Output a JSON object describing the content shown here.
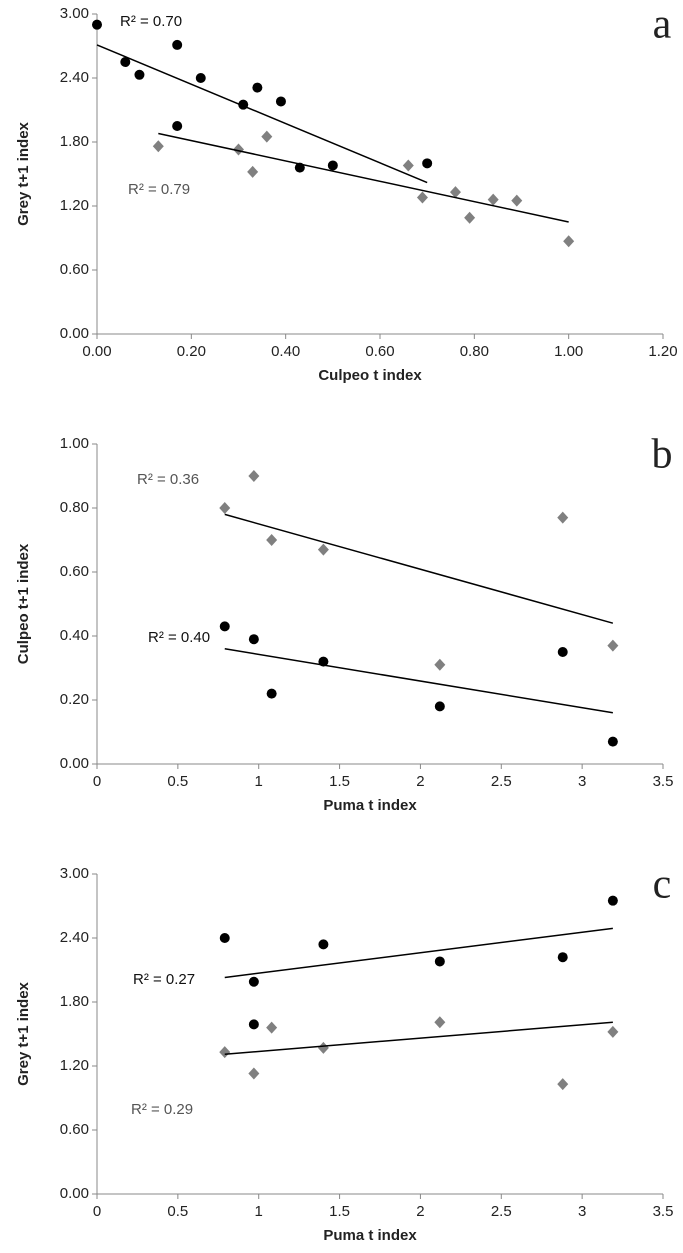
{
  "chart_data": [
    {
      "type": "scatter",
      "panel_label": "a",
      "xlabel": "Culpeo t index",
      "ylabel": "Grey t+1 index",
      "xlim": [
        0,
        1.2
      ],
      "ylim": [
        0,
        3
      ],
      "xticks": [
        {
          "value": 0,
          "label": "0.00"
        },
        {
          "value": 0.2,
          "label": "0.20"
        },
        {
          "value": 0.4,
          "label": "0.40"
        },
        {
          "value": 0.6,
          "label": "0.60"
        },
        {
          "value": 0.8,
          "label": "0.80"
        },
        {
          "value": 1,
          "label": "1.00"
        },
        {
          "value": 1.2,
          "label": "1.20"
        }
      ],
      "yticks": [
        {
          "value": 0,
          "label": "0.00"
        },
        {
          "value": 0.6,
          "label": "0.60"
        },
        {
          "value": 1.2,
          "label": "1.20"
        },
        {
          "value": 1.8,
          "label": "1.80"
        },
        {
          "value": 2.4,
          "label": "2.40"
        },
        {
          "value": 3,
          "label": "3.00"
        }
      ],
      "series": [
        {
          "color": "#000000",
          "marker": "circle",
          "r2_label": "R² = 0.70",
          "x": [
            0,
            0.06,
            0.09,
            0.17,
            0.22,
            0.31,
            0.34,
            0.39,
            0.17,
            0.43,
            0.5,
            0.7
          ],
          "values": [
            2.9,
            2.55,
            2.43,
            2.71,
            2.4,
            2.15,
            2.31,
            2.18,
            1.95,
            1.56,
            1.58,
            1.6
          ],
          "trendline": {
            "x": [
              0,
              0.7
            ],
            "values": [
              2.71,
              1.42
            ]
          }
        },
        {
          "color": "#808080",
          "marker": "diamond",
          "r2_label": "R² = 0.79",
          "x": [
            0.13,
            0.3,
            0.33,
            0.36,
            0.66,
            0.69,
            0.76,
            0.79,
            0.84,
            0.89,
            1.0
          ],
          "values": [
            1.76,
            1.73,
            1.52,
            1.85,
            1.58,
            1.28,
            1.33,
            1.09,
            1.26,
            1.25,
            0.87
          ],
          "trendline": {
            "x": [
              0.13,
              1.0
            ],
            "values": [
              1.88,
              1.05
            ]
          }
        }
      ]
    },
    {
      "type": "scatter",
      "panel_label": "b",
      "xlabel": "Puma t index",
      "ylabel": "Culpeo t+1 index",
      "xlim": [
        0,
        3.5
      ],
      "ylim": [
        0,
        1
      ],
      "xticks": [
        0,
        0.5,
        1,
        1.5,
        2,
        2.5,
        3,
        3.5
      ],
      "yticks": [
        {
          "value": 0,
          "label": "0.00"
        },
        {
          "value": 0.2,
          "label": "0.20"
        },
        {
          "value": 0.4,
          "label": "0.40"
        },
        {
          "value": 0.6,
          "label": "0.60"
        },
        {
          "value": 0.8,
          "label": "0.80"
        },
        {
          "value": 1,
          "label": "1.00"
        }
      ],
      "series": [
        {
          "color": "#000000",
          "marker": "circle",
          "r2_label": "R² = 0.40",
          "x": [
            0.79,
            0.97,
            1.08,
            1.4,
            2.12,
            2.88,
            3.19
          ],
          "values": [
            0.43,
            0.39,
            0.22,
            0.32,
            0.18,
            0.35,
            0.07
          ],
          "trendline": {
            "x": [
              0.79,
              3.19
            ],
            "values": [
              0.36,
              0.16
            ]
          }
        },
        {
          "color": "#808080",
          "marker": "diamond",
          "r2_label": "R² = 0.36",
          "x": [
            0.79,
            0.97,
            1.08,
            1.4,
            2.12,
            2.88,
            3.19
          ],
          "values": [
            0.8,
            0.9,
            0.7,
            0.67,
            0.31,
            0.77,
            0.37
          ],
          "trendline": {
            "x": [
              0.79,
              3.19
            ],
            "values": [
              0.78,
              0.44
            ]
          }
        }
      ]
    },
    {
      "type": "scatter",
      "panel_label": "c",
      "xlabel": "Puma t index",
      "ylabel": "Grey t+1 index",
      "xlim": [
        0,
        3.5
      ],
      "ylim": [
        0,
        3
      ],
      "xticks": [
        0,
        0.5,
        1,
        1.5,
        2,
        2.5,
        3,
        3.5
      ],
      "yticks": [
        {
          "value": 0,
          "label": "0.00"
        },
        {
          "value": 0.6,
          "label": "0.60"
        },
        {
          "value": 1.2,
          "label": "1.20"
        },
        {
          "value": 1.8,
          "label": "1.80"
        },
        {
          "value": 2.4,
          "label": "2.40"
        },
        {
          "value": 3,
          "label": "3.00"
        }
      ],
      "series": [
        {
          "color": "#000000",
          "marker": "circle",
          "r2_label": "R² = 0.27",
          "x": [
            0.79,
            0.97,
            0.97,
            1.4,
            2.12,
            2.88,
            3.19
          ],
          "values": [
            2.4,
            1.99,
            1.59,
            2.34,
            2.18,
            2.22,
            2.75
          ],
          "trendline": {
            "x": [
              0.79,
              3.19
            ],
            "values": [
              2.03,
              2.49
            ]
          }
        },
        {
          "color": "#808080",
          "marker": "diamond",
          "r2_label": "R² = 0.29",
          "x": [
            0.79,
            0.97,
            1.08,
            1.4,
            2.12,
            2.88,
            3.19
          ],
          "values": [
            1.33,
            1.13,
            1.56,
            1.37,
            1.61,
            1.03,
            1.52
          ],
          "trendline": {
            "x": [
              0.79,
              3.19
            ],
            "values": [
              1.31,
              1.61
            ]
          }
        }
      ]
    }
  ]
}
